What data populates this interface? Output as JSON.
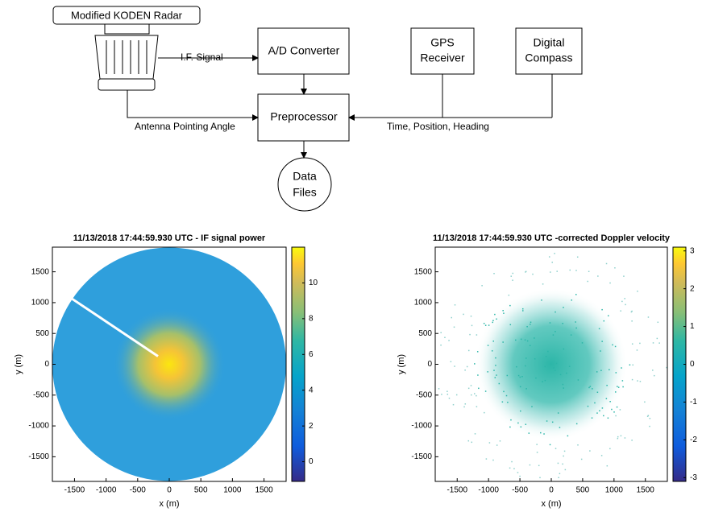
{
  "diagram": {
    "radar_label": "Modified KODEN Radar",
    "boxes": {
      "ad_converter": "A/D Converter",
      "preprocessor": "Preprocessor",
      "gps": [
        "GPS",
        "Receiver"
      ],
      "compass": [
        "Digital",
        "Compass"
      ],
      "data_files": [
        "Data",
        "Files"
      ]
    },
    "edge_labels": {
      "if_signal": "I.F. Signal",
      "antenna": "Antenna Pointing Angle",
      "time_position": "Time, Position, Heading"
    }
  },
  "panels": [
    {
      "title": "11/13/2018 17:44:59.930 UTC - IF signal power",
      "xlabel": "x (m)",
      "ylabel": "y (m)",
      "xlim": [
        -1850,
        1850
      ],
      "ylim": [
        -1900,
        1900
      ],
      "xticks": [
        -1500,
        -1000,
        -500,
        0,
        500,
        1000,
        1500
      ],
      "yticks": [
        -1500,
        -1000,
        -500,
        0,
        500,
        1000,
        1500
      ],
      "colorbar": {
        "lim": [
          -1.1,
          12
        ],
        "ticks": [
          0,
          2,
          4,
          6,
          8,
          10
        ]
      }
    },
    {
      "title": "11/13/2018 17:44:59.930 UTC -corrected Doppler velocity",
      "xlabel": "x (m)",
      "ylabel": "y (m)",
      "xlim": [
        -1850,
        1850
      ],
      "ylim": [
        -1900,
        1900
      ],
      "xticks": [
        -1500,
        -1000,
        -500,
        0,
        500,
        1000,
        1500
      ],
      "yticks": [
        -1500,
        -1000,
        -500,
        0,
        500,
        1000,
        1500
      ],
      "colorbar": {
        "lim": [
          -3.1,
          3.1
        ],
        "ticks": [
          -3,
          -2,
          -1,
          0,
          1,
          2,
          3
        ]
      }
    }
  ]
}
